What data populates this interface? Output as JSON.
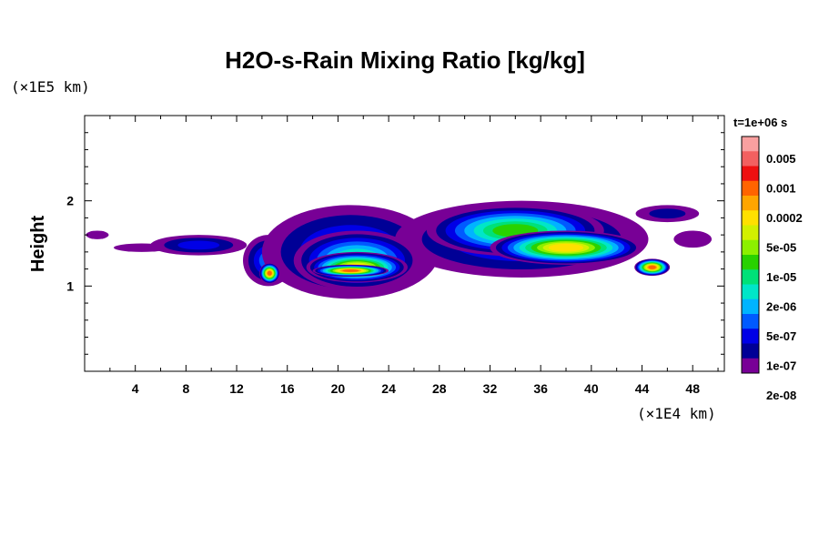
{
  "chart_data": {
    "type": "heatmap",
    "title": "H2O-s-Rain Mixing Ratio [kg/kg]",
    "ylabel": "Height",
    "xlabel": "",
    "x_unit": "(×1E4 km)",
    "y_unit": "(×1E5 km)",
    "time_label": "t=1e+06 s",
    "xlim": [
      0,
      50.5
    ],
    "ylim": [
      0,
      3
    ],
    "x_ticks": [
      4,
      8,
      12,
      16,
      20,
      24,
      28,
      32,
      36,
      40,
      44,
      48
    ],
    "x_tick_labels": [
      "4",
      "8",
      "12",
      "16",
      "20",
      "24",
      "28",
      "32",
      "36",
      "40",
      "44",
      "48"
    ],
    "y_ticks": [
      1,
      2
    ],
    "y_tick_labels": [
      "1",
      "2"
    ],
    "colorbar": {
      "labels": [
        "0.005",
        "0.001",
        "0.0002",
        "5e-05",
        "1e-05",
        "2e-06",
        "5e-07",
        "1e-07",
        "2e-08"
      ],
      "colors": [
        "#f9a0a0",
        "#f26060",
        "#ee1010",
        "#ff6400",
        "#ffa500",
        "#ffe000",
        "#d2f000",
        "#8cf000",
        "#28d200",
        "#00e178",
        "#00e6c8",
        "#00b4ff",
        "#005aff",
        "#0000e6",
        "#000096",
        "#780096"
      ]
    },
    "field_blobs": [
      {
        "x": 1.0,
        "y": 1.6,
        "rx": 0.9,
        "ry": 0.05,
        "level": 15
      },
      {
        "x": 4.5,
        "y": 1.45,
        "rx": 2.2,
        "ry": 0.05,
        "level": 15
      },
      {
        "x": 9.0,
        "y": 1.48,
        "rx": 3.8,
        "ry": 0.12,
        "level": 13
      },
      {
        "x": 14.5,
        "y": 1.3,
        "rx": 2.0,
        "ry": 0.3,
        "level": 12
      },
      {
        "x": 14.6,
        "y": 1.15,
        "rx": 0.8,
        "ry": 0.12,
        "level": 3
      },
      {
        "x": 21.0,
        "y": 1.4,
        "rx": 7.0,
        "ry": 0.55,
        "level": 12
      },
      {
        "x": 21.5,
        "y": 1.3,
        "rx": 5.0,
        "ry": 0.35,
        "level": 9
      },
      {
        "x": 21.5,
        "y": 1.22,
        "rx": 4.0,
        "ry": 0.18,
        "level": 5
      },
      {
        "x": 21.0,
        "y": 1.18,
        "rx": 3.0,
        "ry": 0.07,
        "level": 3
      },
      {
        "x": 34.5,
        "y": 1.55,
        "rx": 10.0,
        "ry": 0.45,
        "level": 12
      },
      {
        "x": 34.0,
        "y": 1.65,
        "rx": 7.0,
        "ry": 0.3,
        "level": 8
      },
      {
        "x": 38.0,
        "y": 1.45,
        "rx": 6.0,
        "ry": 0.2,
        "level": 5
      },
      {
        "x": 44.8,
        "y": 1.22,
        "rx": 1.4,
        "ry": 0.1,
        "level": 3
      },
      {
        "x": 46.0,
        "y": 1.85,
        "rx": 2.5,
        "ry": 0.1,
        "level": 14
      },
      {
        "x": 48.0,
        "y": 1.55,
        "rx": 1.5,
        "ry": 0.1,
        "level": 15
      }
    ]
  }
}
